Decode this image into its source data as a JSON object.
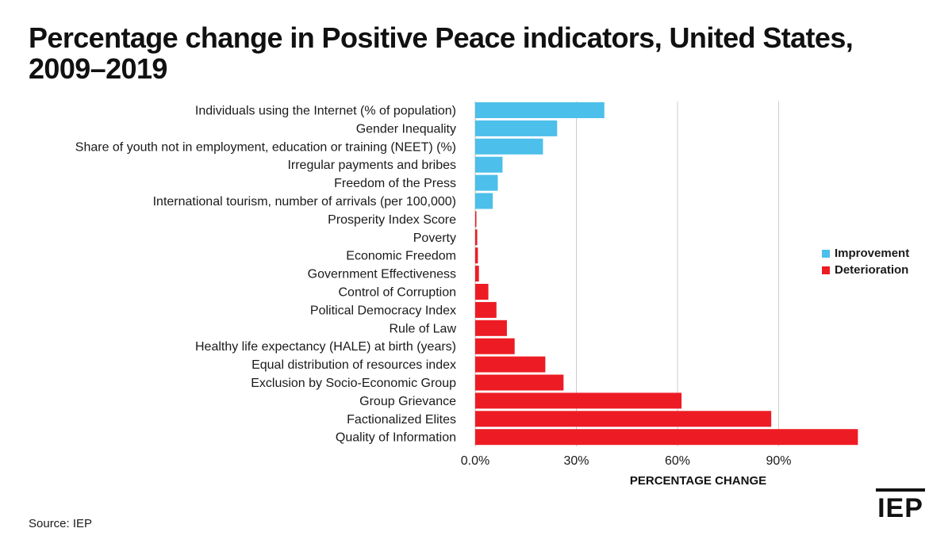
{
  "title": "Percentage change in Positive Peace indicators, United States, 2009–2019",
  "source": "Source: IEP",
  "logo": "IEP",
  "colors": {
    "improvement": "#4cbfea",
    "deterioration": "#ed1c24",
    "grid": "#cccccc"
  },
  "chart_data": {
    "type": "bar",
    "orientation": "horizontal",
    "xlabel": "PERCENTAGE CHANGE",
    "xlim": [
      0,
      114
    ],
    "xticks": [
      0,
      30,
      60,
      90
    ],
    "xtick_labels": [
      "0.0%",
      "30%",
      "60%",
      "90%"
    ],
    "grid": true,
    "legend_position": "right",
    "series": [
      {
        "name": "Improvement"
      },
      {
        "name": "Deterioration"
      }
    ],
    "categories": [
      "Individuals using the Internet (% of population)",
      "Gender Inequality",
      "Share of youth not in employment, education or training (NEET) (%)",
      "Irregular payments and bribes",
      "Freedom of the Press",
      "International tourism, number of arrivals (per 100,000)",
      "Prosperity Index Score",
      "Poverty",
      "Economic Freedom",
      "Government Effectiveness",
      "Control of Corruption",
      "Political Democracy Index",
      "Rule of Law",
      "Healthy life expectancy (HALE) at birth (years)",
      "Equal distribution of resources index",
      "Exclusion by Socio-Economic Group",
      "Group Grievance",
      "Factionalized Elites",
      "Quality of Information"
    ],
    "values": [
      38.3,
      24.3,
      20.1,
      8.1,
      6.7,
      5.2,
      0.3,
      0.6,
      0.8,
      1.1,
      3.9,
      6.3,
      9.4,
      11.7,
      20.8,
      26.2,
      61.2,
      87.8,
      113.5
    ],
    "types": [
      "Improvement",
      "Improvement",
      "Improvement",
      "Improvement",
      "Improvement",
      "Improvement",
      "Deterioration",
      "Deterioration",
      "Deterioration",
      "Deterioration",
      "Deterioration",
      "Deterioration",
      "Deterioration",
      "Deterioration",
      "Deterioration",
      "Deterioration",
      "Deterioration",
      "Deterioration",
      "Deterioration"
    ]
  }
}
